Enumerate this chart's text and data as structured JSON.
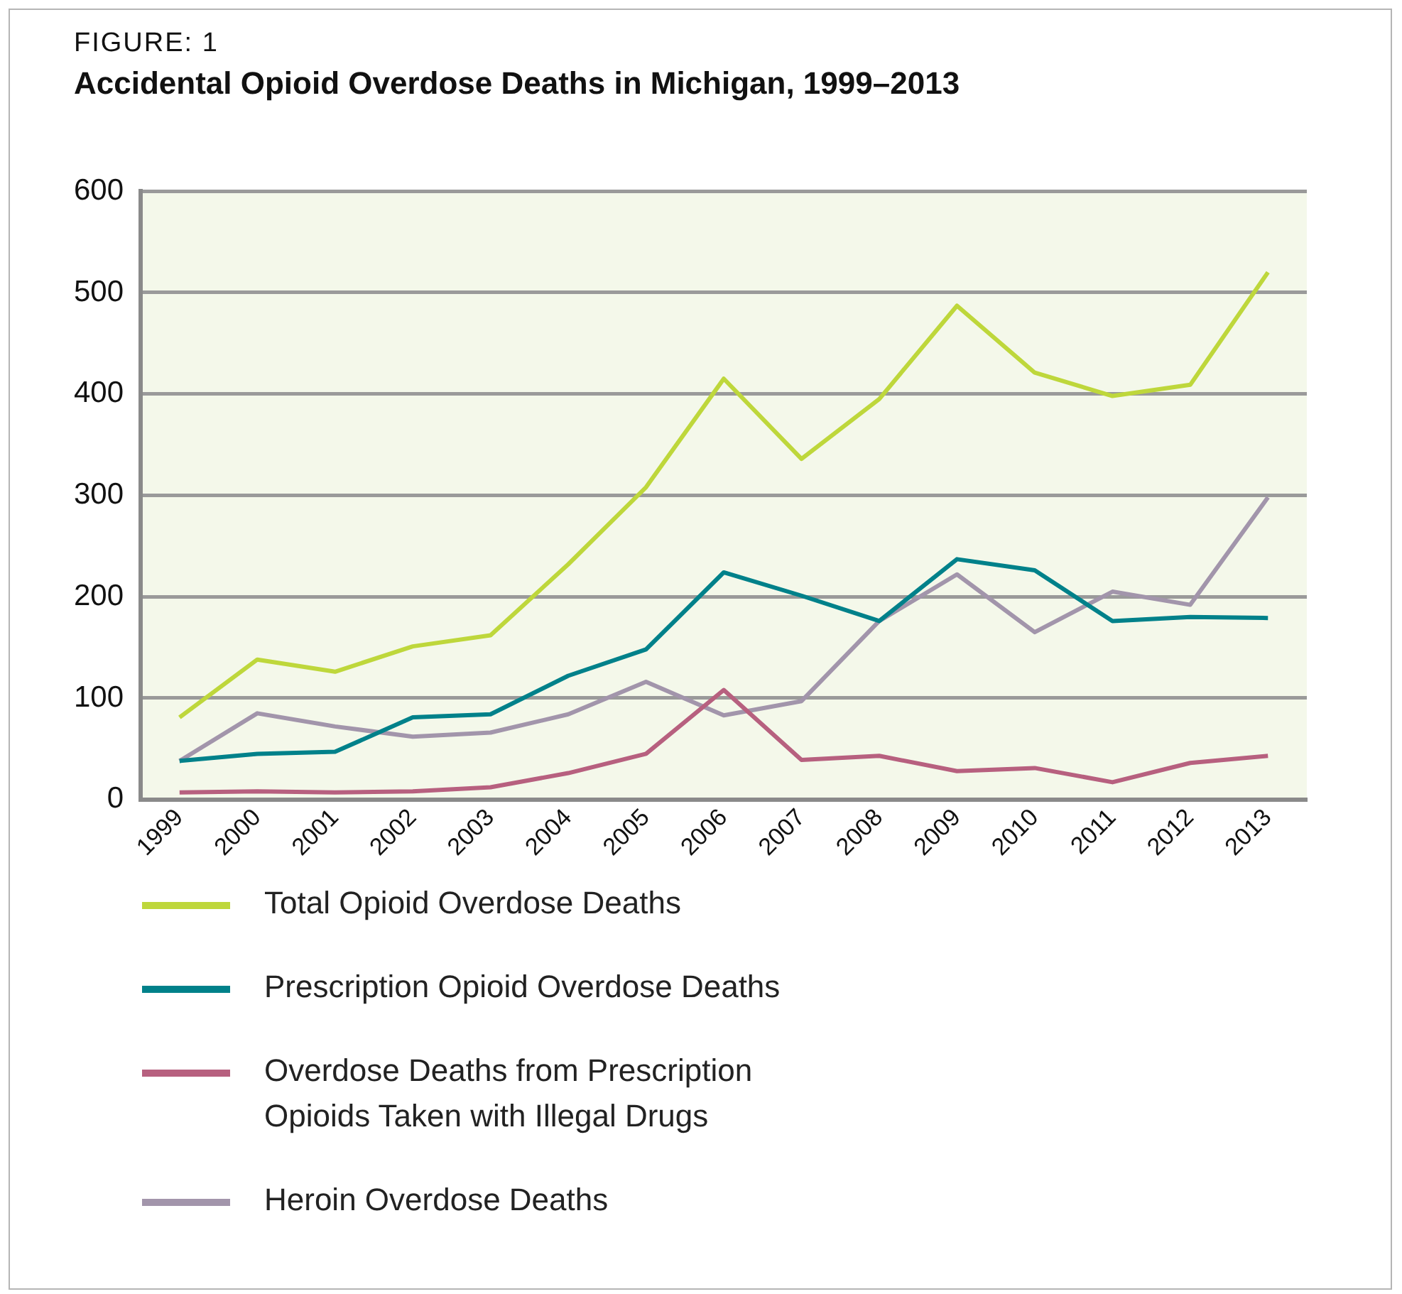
{
  "chart_data": {
    "type": "line",
    "title": "Accidental Opioid Overdose Deaths in Michigan, 1999–2013",
    "annotations": [
      "FIGURE: 1"
    ],
    "categories": [
      "1999",
      "2000",
      "2001",
      "2002",
      "2003",
      "2004",
      "2005",
      "2006",
      "2007",
      "2008",
      "2009",
      "2010",
      "2011",
      "2012",
      "2013"
    ],
    "series": [
      {
        "name": "Total Opioid Overdose Deaths",
        "color": "#bed73b",
        "values": [
          81,
          138,
          126,
          151,
          162,
          232,
          308,
          415,
          336,
          395,
          487,
          421,
          398,
          409,
          520
        ]
      },
      {
        "name": "Prescription Opioid Overdose Deaths",
        "color": "#00818a",
        "values": [
          38,
          45,
          47,
          81,
          84,
          122,
          148,
          224,
          201,
          176,
          237,
          226,
          176,
          180,
          179
        ]
      },
      {
        "name": "Overdose Deaths from Prescription Opioids Taken with Illegal Drugs",
        "color": "#b7607f",
        "values": [
          7,
          8,
          7,
          8,
          12,
          26,
          45,
          108,
          39,
          43,
          28,
          31,
          17,
          36,
          43
        ]
      },
      {
        "name": "Heroin Overdose Deaths",
        "color": "#a295ab",
        "values": [
          38,
          85,
          72,
          62,
          66,
          84,
          116,
          83,
          97,
          176,
          222,
          165,
          205,
          192,
          298
        ]
      }
    ],
    "ylim": [
      0,
      600
    ],
    "yticks": [
      0,
      100,
      200,
      300,
      400,
      500,
      600
    ],
    "grid": "y",
    "legend": "bottom",
    "marker": "none",
    "line_style": "solid"
  }
}
